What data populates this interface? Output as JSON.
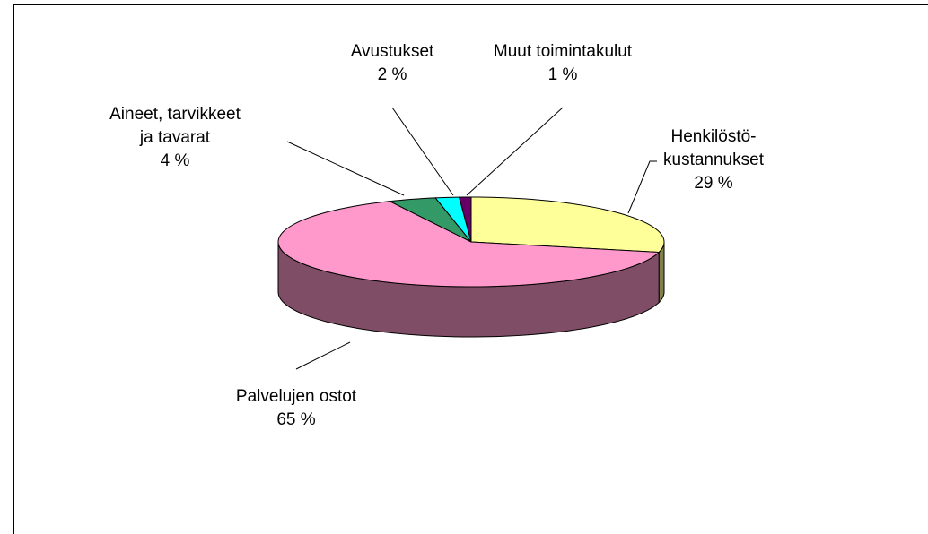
{
  "chart_data": {
    "type": "pie3d",
    "categories": [
      "Henkilöstö-\nkustannukset",
      "Palvelujen ostot",
      "Aineet, tarvikkeet\nja tavarat",
      "Avustukset",
      "Muut toimintakulut"
    ],
    "values": [
      29,
      65,
      4,
      2,
      1
    ],
    "value_labels": [
      "29 %",
      "65 %",
      "4 %",
      "2 %",
      "1 %"
    ],
    "colors": [
      "#ffff99",
      "#ff99cc",
      "#339966",
      "#00ffff",
      "#660066"
    ]
  }
}
